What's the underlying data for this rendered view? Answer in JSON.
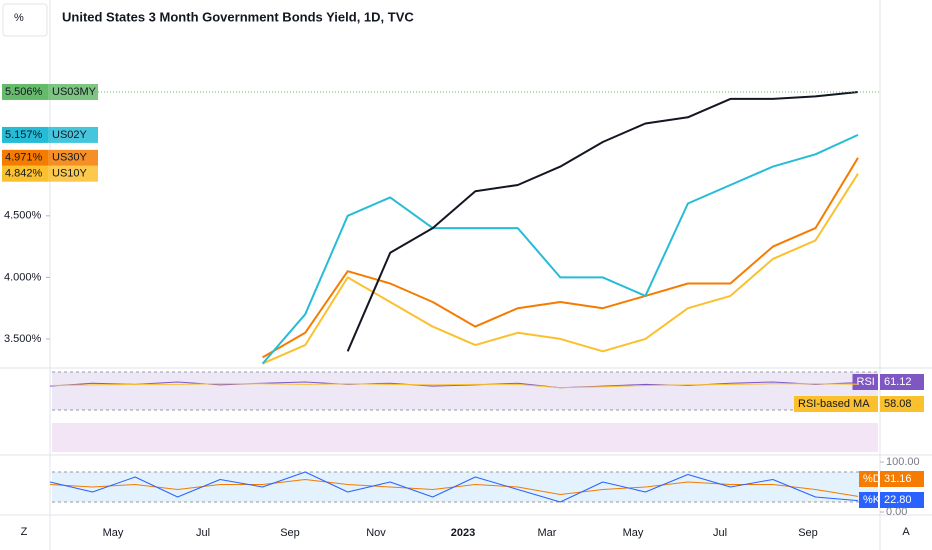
{
  "chart_data": {
    "type": "line",
    "title": "United States 3 Month Government Bonds Yield, 1D, TVC",
    "scale_button": "%",
    "x_labels": [
      "May",
      "Jul",
      "Sep",
      "Nov",
      "2023",
      "Mar",
      "May",
      "Jul",
      "Sep"
    ],
    "ylim": [
      3.264,
      6.253
    ],
    "yticks": [
      {
        "value": 3.5,
        "label": "3.500%"
      },
      {
        "value": 4.0,
        "label": "4.000%"
      },
      {
        "value": 4.5,
        "label": "4.500%"
      }
    ],
    "series": [
      {
        "name": "US03MY",
        "color": "#131722",
        "label_color": "#66bb6a",
        "last_label": "5.506%",
        "values": [
          null,
          null,
          null,
          null,
          null,
          null,
          null,
          3.4,
          4.2,
          4.4,
          4.7,
          4.75,
          4.9,
          5.1,
          5.25,
          5.3,
          5.45,
          5.45,
          5.47,
          5.506
        ]
      },
      {
        "name": "US02Y",
        "color": "#26bcd7",
        "label_color": "#26bcd7",
        "last_label": "5.157%",
        "values": [
          null,
          null,
          null,
          null,
          null,
          3.3,
          3.7,
          4.5,
          4.65,
          4.4,
          4.4,
          4.4,
          4.0,
          4.0,
          3.85,
          4.6,
          4.75,
          4.9,
          5.0,
          5.157
        ]
      },
      {
        "name": "US30Y",
        "color": "#f57c00",
        "label_color": "#f57c00",
        "last_label": "4.971%",
        "values": [
          null,
          null,
          null,
          null,
          null,
          3.35,
          3.55,
          4.05,
          3.95,
          3.8,
          3.6,
          3.75,
          3.8,
          3.75,
          3.85,
          3.95,
          3.95,
          4.25,
          4.4,
          4.971
        ]
      },
      {
        "name": "US10Y",
        "color": "#fbc02d",
        "label_color": "#fbc02d",
        "last_label": "4.842%",
        "values": [
          null,
          null,
          null,
          null,
          null,
          3.3,
          3.45,
          4.0,
          3.8,
          3.6,
          3.45,
          3.55,
          3.5,
          3.4,
          3.5,
          3.75,
          3.85,
          4.15,
          4.3,
          4.842
        ]
      }
    ],
    "rsi": {
      "ylim": [
        0,
        100
      ],
      "series": [
        {
          "name": "RSI",
          "color": "#7e57c2",
          "last_label": "61.12",
          "values": [
            55,
            60,
            58,
            62,
            57,
            60,
            62,
            58,
            60,
            55,
            57,
            60,
            52,
            55,
            58,
            56,
            60,
            62,
            58,
            61.12
          ]
        },
        {
          "name": "RSI-based MA",
          "color": "#fbc02d",
          "last_label": "58.08",
          "values": [
            56,
            57,
            58,
            58,
            59,
            59,
            58,
            59,
            58,
            57,
            58,
            58,
            52,
            54,
            56,
            57,
            58,
            59,
            59,
            58.08
          ]
        }
      ]
    },
    "stoch": {
      "ylim": [
        0,
        100
      ],
      "yticks": [
        {
          "value": 100,
          "label": "100.00"
        },
        {
          "value": 0,
          "label": "0.00"
        }
      ],
      "series": [
        {
          "name": "%D",
          "color": "#f57c00",
          "last_label": "31.16",
          "values": [
            55,
            50,
            55,
            45,
            55,
            55,
            65,
            55,
            50,
            45,
            55,
            50,
            35,
            45,
            50,
            60,
            55,
            55,
            45,
            31.16
          ]
        },
        {
          "name": "%K",
          "color": "#2962ff",
          "last_label": "22.80",
          "values": [
            60,
            40,
            70,
            30,
            65,
            50,
            80,
            40,
            60,
            30,
            70,
            45,
            20,
            60,
            40,
            75,
            50,
            65,
            30,
            22.8
          ]
        }
      ]
    },
    "bottom_left": "Z",
    "bottom_right": "A"
  }
}
